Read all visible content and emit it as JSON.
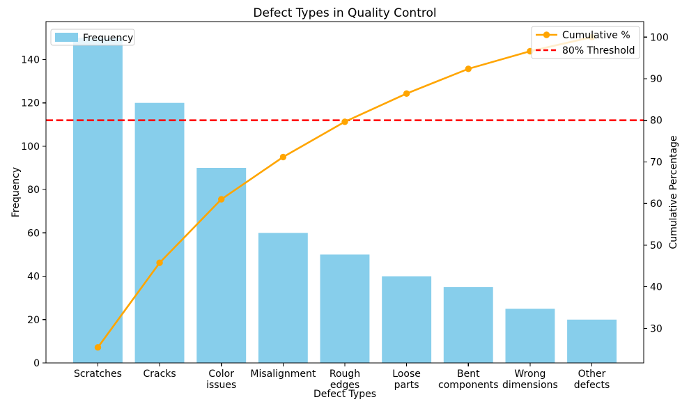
{
  "chart_data": {
    "type": "bar+line (pareto)",
    "title": "Defect Types in Quality Control",
    "xlabel": "Defect Types",
    "ylabel_left": "Frequency",
    "ylabel_right": "Cumulative Percentage",
    "categories": [
      "Scratches",
      "Cracks",
      "Color issues",
      "Misalignment",
      "Rough edges",
      "Loose parts",
      "Bent components",
      "Wrong dimensions",
      "Other defects"
    ],
    "category_tick_lines": [
      [
        "Scratches"
      ],
      [
        "Cracks"
      ],
      [
        "Color",
        "issues"
      ],
      [
        "Misalignment"
      ],
      [
        "Rough",
        "edges"
      ],
      [
        "Loose",
        "parts"
      ],
      [
        "Bent",
        "components"
      ],
      [
        "Wrong",
        "dimensions"
      ],
      [
        "Other",
        "defects"
      ]
    ],
    "series": [
      {
        "name": "Frequency",
        "type": "bar",
        "axis": "left",
        "color": "#87CEEB",
        "values": [
          150,
          120,
          90,
          60,
          50,
          40,
          35,
          25,
          20
        ]
      },
      {
        "name": "Cumulative %",
        "type": "line",
        "axis": "right",
        "color": "#FFA500",
        "marker": "circle",
        "values": [
          25.42,
          45.76,
          61.02,
          71.19,
          79.66,
          86.44,
          92.37,
          96.61,
          100.0
        ]
      }
    ],
    "threshold": {
      "name": "80% Threshold",
      "value": 80,
      "axis": "right",
      "color": "#FF0000",
      "style": "dashed"
    },
    "left_axis": {
      "ticks": [
        0,
        20,
        40,
        60,
        80,
        100,
        120,
        140
      ],
      "range": [
        0,
        157.5
      ]
    },
    "right_axis": {
      "ticks": [
        30,
        40,
        50,
        60,
        70,
        80,
        90,
        100
      ],
      "range": [
        21.69,
        103.73
      ]
    },
    "legend_left": {
      "entries": [
        "Frequency"
      ]
    },
    "legend_right": {
      "entries": [
        "Cumulative %",
        "80% Threshold"
      ]
    },
    "grid": false,
    "background": "#FFFFFF",
    "spine_color": "#000000",
    "legend_edge_color": "#CCCCCC"
  }
}
